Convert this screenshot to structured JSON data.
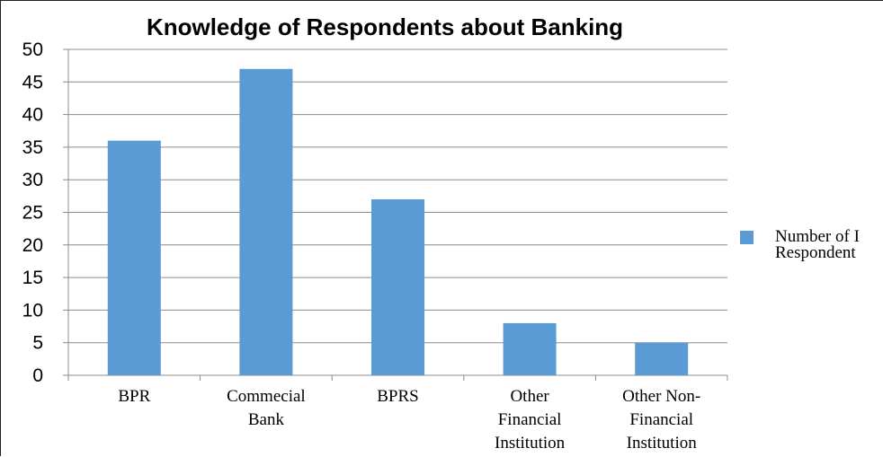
{
  "chart_data": {
    "type": "bar",
    "title": "Knowledge of Respondents about Banking",
    "categories": [
      [
        "BPR"
      ],
      [
        "Commecial",
        "Bank"
      ],
      [
        "BPRS"
      ],
      [
        "Other",
        "Financial",
        "Institution"
      ],
      [
        "Other Non-",
        "Financial",
        "Institution"
      ]
    ],
    "series": [
      {
        "name": [
          "Number of I",
          "Respondent"
        ],
        "values": [
          36,
          47,
          27,
          8,
          5
        ],
        "color": "#5b9bd5"
      }
    ],
    "ylim": [
      0,
      50
    ],
    "yticks": [
      0,
      5,
      10,
      15,
      20,
      25,
      30,
      35,
      40,
      45,
      50
    ],
    "grid": true,
    "legend": "right"
  }
}
